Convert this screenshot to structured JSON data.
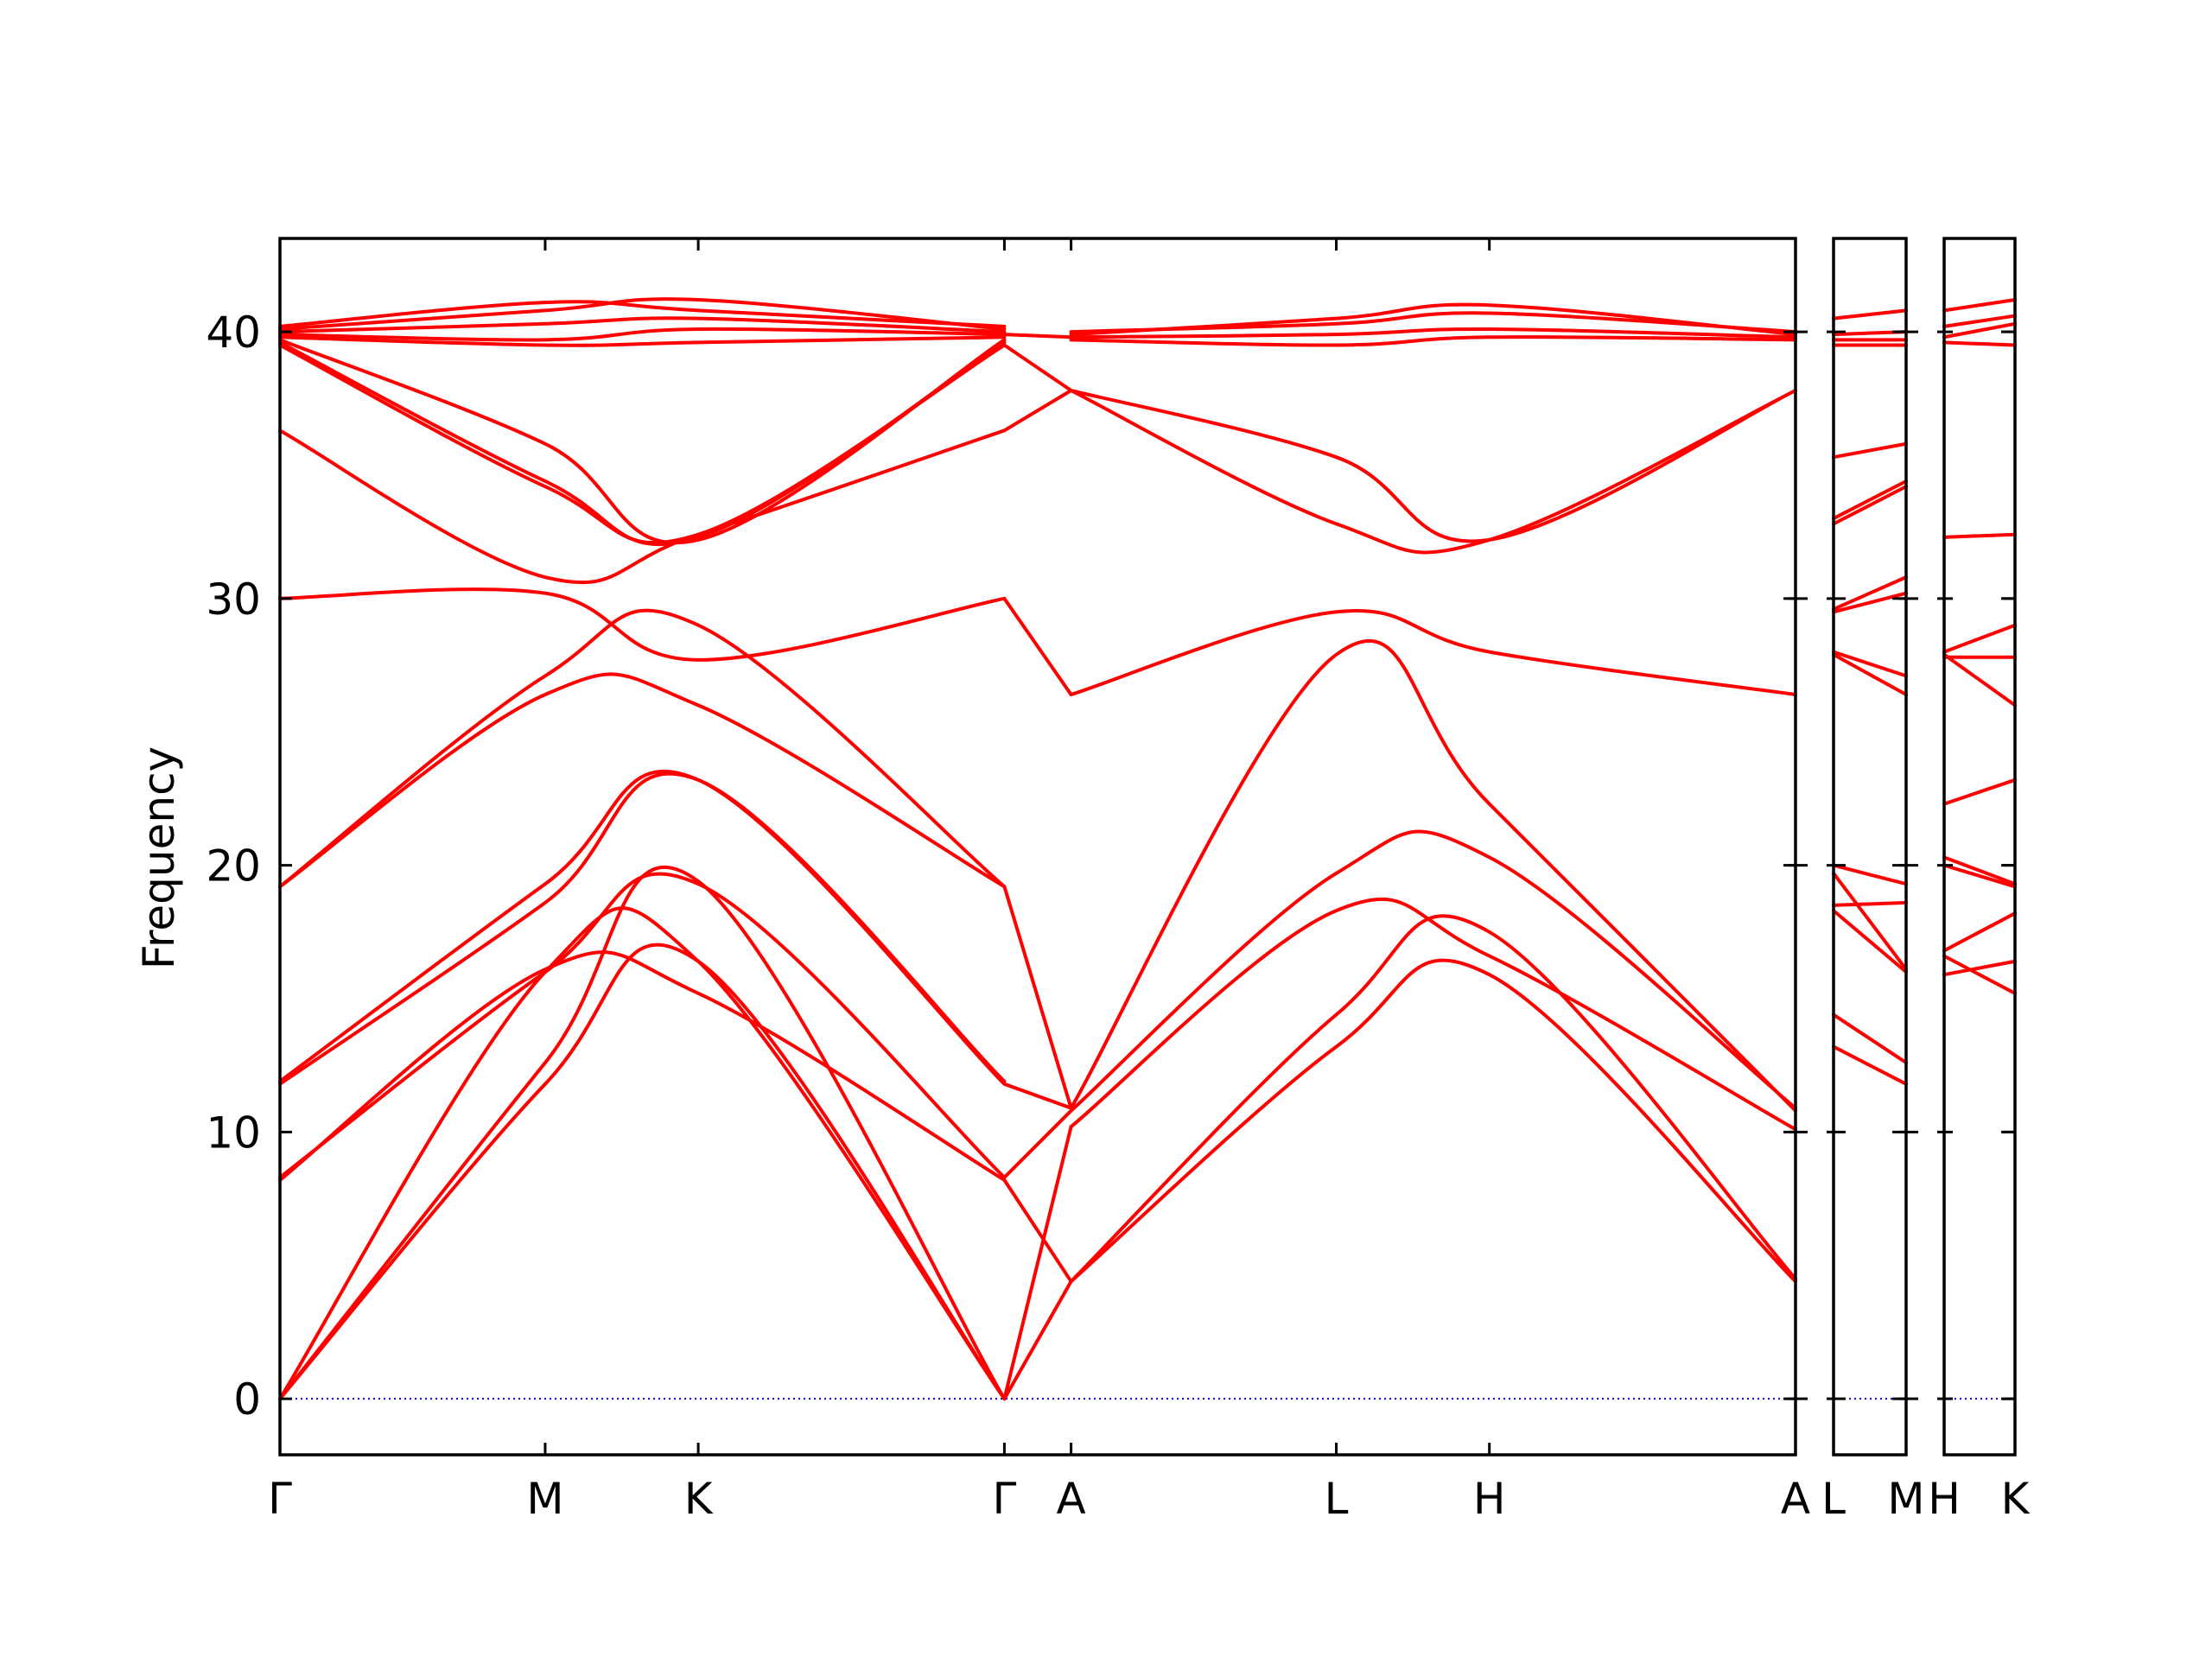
{
  "chart_data": {
    "type": "line",
    "title": "",
    "xlabel": "",
    "ylabel": "Frequency",
    "ylim": [
      -2.1,
      43.5
    ],
    "yticks": [
      0,
      10,
      20,
      30,
      40
    ],
    "grid": false,
    "colors": {
      "bands": "#ff0000",
      "zero_line": "#0000cc",
      "frame": "#000000"
    },
    "panels": [
      {
        "id": "main",
        "xlim": [
          0,
          10
        ],
        "labels": [
          {
            "x": 0,
            "label": "Γ"
          },
          {
            "x": 1.75,
            "label": "M"
          },
          {
            "x": 2.76,
            "label": "K"
          },
          {
            "x": 4.78,
            "label": "Γ"
          },
          {
            "x": 5.22,
            "label": "A"
          },
          {
            "x": 6.97,
            "label": "L"
          },
          {
            "x": 7.98,
            "label": "H"
          },
          {
            "x": 10,
            "label": "A"
          }
        ],
        "bands": [
          {
            "x": [
              0,
              1.75,
              2.76,
              4.78
            ],
            "y": [
              0,
              11.8,
              16.4,
              0
            ]
          },
          {
            "x": [
              0,
              1.75,
              2.76,
              4.78
            ],
            "y": [
              0,
              12.6,
              19.4,
              0
            ]
          },
          {
            "x": [
              0,
              1.75,
              2.76,
              4.78
            ],
            "y": [
              0,
              16.0,
              16.4,
              0
            ]
          },
          {
            "x": [
              0,
              1.75,
              2.76,
              4.78
            ],
            "y": [
              8.2,
              16.1,
              15.2,
              8.2
            ]
          },
          {
            "x": [
              0,
              1.75,
              2.76,
              4.78
            ],
            "y": [
              8.3,
              16.0,
              19.3,
              8.3
            ]
          },
          {
            "x": [
              0,
              1.75,
              2.76,
              4.78
            ],
            "y": [
              11.8,
              18.6,
              23.2,
              11.9
            ]
          },
          {
            "x": [
              0,
              1.75,
              2.76,
              4.78
            ],
            "y": [
              11.9,
              19.3,
              23.2,
              11.8
            ]
          },
          {
            "x": [
              0,
              1.75,
              2.76,
              4.78
            ],
            "y": [
              19.2,
              26.4,
              26.0,
              19.2
            ]
          },
          {
            "x": [
              0,
              1.75,
              2.76,
              4.78
            ],
            "y": [
              19.2,
              27.1,
              29.0,
              19.2
            ]
          },
          {
            "x": [
              0,
              1.75,
              2.76,
              4.78
            ],
            "y": [
              30.0,
              30.2,
              27.7,
              30.0
            ]
          },
          {
            "x": [
              0,
              1.75,
              2.76,
              4.78
            ],
            "y": [
              36.3,
              30.8,
              32.4,
              36.3
            ]
          },
          {
            "x": [
              0,
              1.75,
              2.76,
              4.78
            ],
            "y": [
              39.5,
              34.2,
              32.4,
              39.5
            ]
          },
          {
            "x": [
              0,
              1.75,
              2.76,
              4.78
            ],
            "y": [
              39.6,
              34.4,
              32.3,
              39.6
            ]
          },
          {
            "x": [
              0,
              1.75,
              2.76,
              4.78
            ],
            "y": [
              39.7,
              35.8,
              32.2,
              39.7
            ]
          },
          {
            "x": [
              0,
              1.75,
              2.76,
              4.78
            ],
            "y": [
              39.8,
              39.5,
              39.6,
              39.8
            ]
          },
          {
            "x": [
              0,
              1.75,
              2.76,
              4.78
            ],
            "y": [
              39.9,
              39.7,
              40.1,
              39.9
            ]
          },
          {
            "x": [
              0,
              1.75,
              2.76,
              4.78
            ],
            "y": [
              40.0,
              40.3,
              40.5,
              40.0
            ]
          },
          {
            "x": [
              0,
              1.75,
              2.76,
              4.78
            ],
            "y": [
              40.1,
              40.8,
              41.2,
              40.1
            ]
          },
          {
            "x": [
              0,
              1.75,
              2.76,
              4.78
            ],
            "y": [
              40.2,
              41.1,
              40.8,
              40.2
            ]
          },
          {
            "x": [
              4.78,
              5.22
            ],
            "y": [
              0,
              4.4
            ]
          },
          {
            "x": [
              4.78,
              5.22
            ],
            "y": [
              0,
              10.2
            ]
          },
          {
            "x": [
              4.78,
              5.22
            ],
            "y": [
              8.2,
              4.4
            ]
          },
          {
            "x": [
              4.78,
              5.22
            ],
            "y": [
              8.3,
              10.8
            ]
          },
          {
            "x": [
              4.78,
              5.22
            ],
            "y": [
              11.8,
              10.9
            ]
          },
          {
            "x": [
              4.78,
              5.22
            ],
            "y": [
              19.2,
              10.9
            ]
          },
          {
            "x": [
              4.78,
              5.22
            ],
            "y": [
              30.0,
              26.4
            ]
          },
          {
            "x": [
              4.78,
              5.22
            ],
            "y": [
              36.3,
              37.8
            ]
          },
          {
            "x": [
              4.78,
              5.22
            ],
            "y": [
              39.5,
              37.8
            ]
          },
          {
            "x": [
              4.78,
              5.22
            ],
            "y": [
              39.9,
              39.8
            ]
          },
          {
            "x": [
              5.22,
              6.97,
              7.98,
              10
            ],
            "y": [
              4.4,
              13.2,
              15.9,
              4.4
            ]
          },
          {
            "x": [
              5.22,
              6.97,
              7.98,
              10
            ],
            "y": [
              4.4,
              14.4,
              17.5,
              4.5
            ]
          },
          {
            "x": [
              5.22,
              6.97,
              7.98,
              10
            ],
            "y": [
              10.2,
              18.3,
              16.6,
              10.1
            ]
          },
          {
            "x": [
              5.22,
              6.97,
              7.98,
              10
            ],
            "y": [
              10.8,
              19.7,
              20.3,
              10.9
            ]
          },
          {
            "x": [
              5.22,
              6.97,
              7.98,
              10
            ],
            "y": [
              10.9,
              27.9,
              22.3,
              10.8
            ]
          },
          {
            "x": [
              5.22,
              6.97,
              7.98,
              10
            ],
            "y": [
              26.4,
              29.5,
              28.0,
              26.4
            ]
          },
          {
            "x": [
              5.22,
              6.97,
              7.98,
              10
            ],
            "y": [
              37.8,
              35.3,
              32.2,
              37.8
            ]
          },
          {
            "x": [
              5.22,
              6.97,
              7.98,
              10
            ],
            "y": [
              37.8,
              32.8,
              32.2,
              37.8
            ]
          },
          {
            "x": [
              5.22,
              6.97,
              7.98,
              10
            ],
            "y": [
              39.7,
              39.5,
              39.8,
              39.7
            ]
          },
          {
            "x": [
              5.22,
              6.97,
              7.98,
              10
            ],
            "y": [
              39.8,
              39.9,
              40.1,
              39.8
            ]
          },
          {
            "x": [
              5.22,
              6.97,
              7.98,
              10
            ],
            "y": [
              39.9,
              40.5,
              41.0,
              39.9
            ]
          },
          {
            "x": [
              5.22,
              6.97,
              7.98,
              10
            ],
            "y": [
              40.0,
              40.3,
              40.7,
              40.0
            ]
          }
        ]
      },
      {
        "id": "LM",
        "xlim": [
          0,
          1
        ],
        "labels": [
          {
            "x": 0,
            "label": "L"
          },
          {
            "x": 1,
            "label": "M"
          }
        ],
        "bands": [
          {
            "x": [
              0,
              1
            ],
            "y": [
              13.2,
              11.8
            ]
          },
          {
            "x": [
              0,
              1
            ],
            "y": [
              14.4,
              12.6
            ]
          },
          {
            "x": [
              0,
              1
            ],
            "y": [
              18.3,
              16.0
            ]
          },
          {
            "x": [
              0,
              1
            ],
            "y": [
              19.7,
              16.1
            ]
          },
          {
            "x": [
              0,
              1
            ],
            "y": [
              18.5,
              18.6
            ]
          },
          {
            "x": [
              0,
              1
            ],
            "y": [
              20.0,
              19.3
            ]
          },
          {
            "x": [
              0,
              1
            ],
            "y": [
              27.9,
              26.4
            ]
          },
          {
            "x": [
              0,
              1
            ],
            "y": [
              28.0,
              27.1
            ]
          },
          {
            "x": [
              0,
              1
            ],
            "y": [
              29.5,
              30.2
            ]
          },
          {
            "x": [
              0,
              1
            ],
            "y": [
              29.6,
              30.8
            ]
          },
          {
            "x": [
              0,
              1
            ],
            "y": [
              32.8,
              34.2
            ]
          },
          {
            "x": [
              0,
              1
            ],
            "y": [
              33.0,
              34.4
            ]
          },
          {
            "x": [
              0,
              1
            ],
            "y": [
              35.3,
              35.8
            ]
          },
          {
            "x": [
              0,
              1
            ],
            "y": [
              39.5,
              39.5
            ]
          },
          {
            "x": [
              0,
              1
            ],
            "y": [
              39.7,
              39.7
            ]
          },
          {
            "x": [
              0,
              1
            ],
            "y": [
              39.9,
              40.0
            ]
          },
          {
            "x": [
              0,
              1
            ],
            "y": [
              40.5,
              40.8
            ]
          }
        ]
      },
      {
        "id": "HK",
        "xlim": [
          0,
          1
        ],
        "labels": [
          {
            "x": 0,
            "label": "H"
          },
          {
            "x": 1,
            "label": "K"
          }
        ],
        "bands": [
          {
            "x": [
              0,
              1
            ],
            "y": [
              15.9,
              16.4
            ]
          },
          {
            "x": [
              0,
              1
            ],
            "y": [
              16.6,
              15.2
            ]
          },
          {
            "x": [
              0,
              1
            ],
            "y": [
              16.8,
              18.2
            ]
          },
          {
            "x": [
              0,
              1
            ],
            "y": [
              20.3,
              19.3
            ]
          },
          {
            "x": [
              0,
              1
            ],
            "y": [
              20.0,
              19.2
            ]
          },
          {
            "x": [
              0,
              1
            ],
            "y": [
              22.3,
              23.2
            ]
          },
          {
            "x": [
              0,
              1
            ],
            "y": [
              27.9,
              26.0
            ]
          },
          {
            "x": [
              0,
              1
            ],
            "y": [
              28.0,
              29.0
            ]
          },
          {
            "x": [
              0,
              1
            ],
            "y": [
              27.8,
              27.8
            ]
          },
          {
            "x": [
              0,
              1
            ],
            "y": [
              32.3,
              32.4
            ]
          },
          {
            "x": [
              0,
              1
            ],
            "y": [
              39.6,
              39.5
            ]
          },
          {
            "x": [
              0,
              1
            ],
            "y": [
              39.8,
              40.3
            ]
          },
          {
            "x": [
              0,
              1
            ],
            "y": [
              40.2,
              40.6
            ]
          },
          {
            "x": [
              0,
              1
            ],
            "y": [
              40.8,
              41.2
            ]
          }
        ]
      }
    ]
  }
}
